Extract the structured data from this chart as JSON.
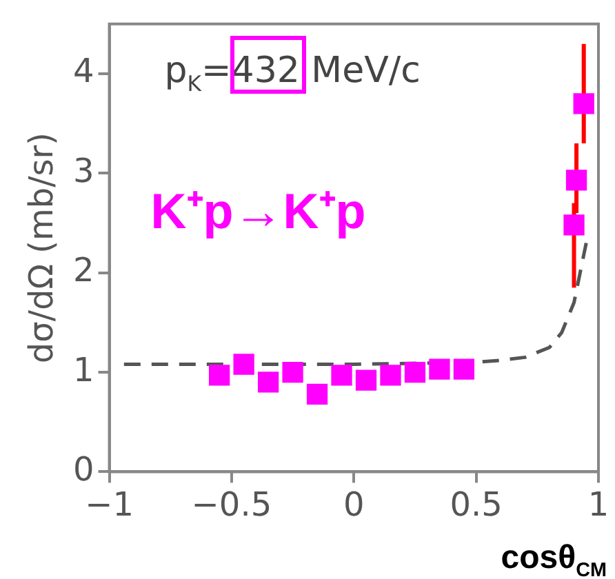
{
  "chart_data": {
    "type": "scatter",
    "xlabel": "cosθ$_{CM}$",
    "ylabel": "dσ/dΩ (mb/sr)",
    "annotations": [
      "p$_{K}$=432 MeV/c",
      "K⁺p→K⁺p"
    ],
    "xlim": [
      -1,
      1
    ],
    "xticks": [
      {
        "value": -1,
        "label": "−1"
      },
      {
        "value": -0.5,
        "label": "−0.5"
      },
      0,
      0.5,
      1
    ],
    "ylim": [
      0,
      4.5
    ],
    "yticks": [
      0,
      1,
      2,
      3,
      4
    ],
    "grid": false,
    "legend": false,
    "series": [
      {
        "color": "#ff00ff",
        "marker": "square",
        "x": [
          -0.55,
          -0.45,
          -0.35,
          -0.25,
          -0.15,
          -0.05,
          0.05,
          0.15,
          0.25,
          0.35,
          0.45,
          0.9,
          0.91,
          0.94
        ],
        "values": [
          0.97,
          1.08,
          0.9,
          1.0,
          0.78,
          0.97,
          0.92,
          0.97,
          1.0,
          1.03,
          1.03,
          2.48,
          2.93,
          3.7
        ],
        "errors": [
          null,
          null,
          null,
          null,
          null,
          null,
          null,
          null,
          null,
          null,
          null,
          [
            1.85,
            2.7
          ],
          [
            2.6,
            3.3
          ],
          [
            3.3,
            4.3
          ]
        ]
      },
      {
        "type": "line",
        "color": "#555555",
        "line_style": "dashed",
        "marker": "none",
        "x": [
          -0.94,
          -0.5,
          0,
          0.5,
          0.6,
          0.7,
          0.8,
          0.85,
          0.9,
          0.95
        ],
        "values": [
          1.08,
          1.08,
          1.08,
          1.1,
          1.12,
          1.15,
          1.25,
          1.4,
          1.7,
          2.3
        ]
      }
    ]
  }
}
